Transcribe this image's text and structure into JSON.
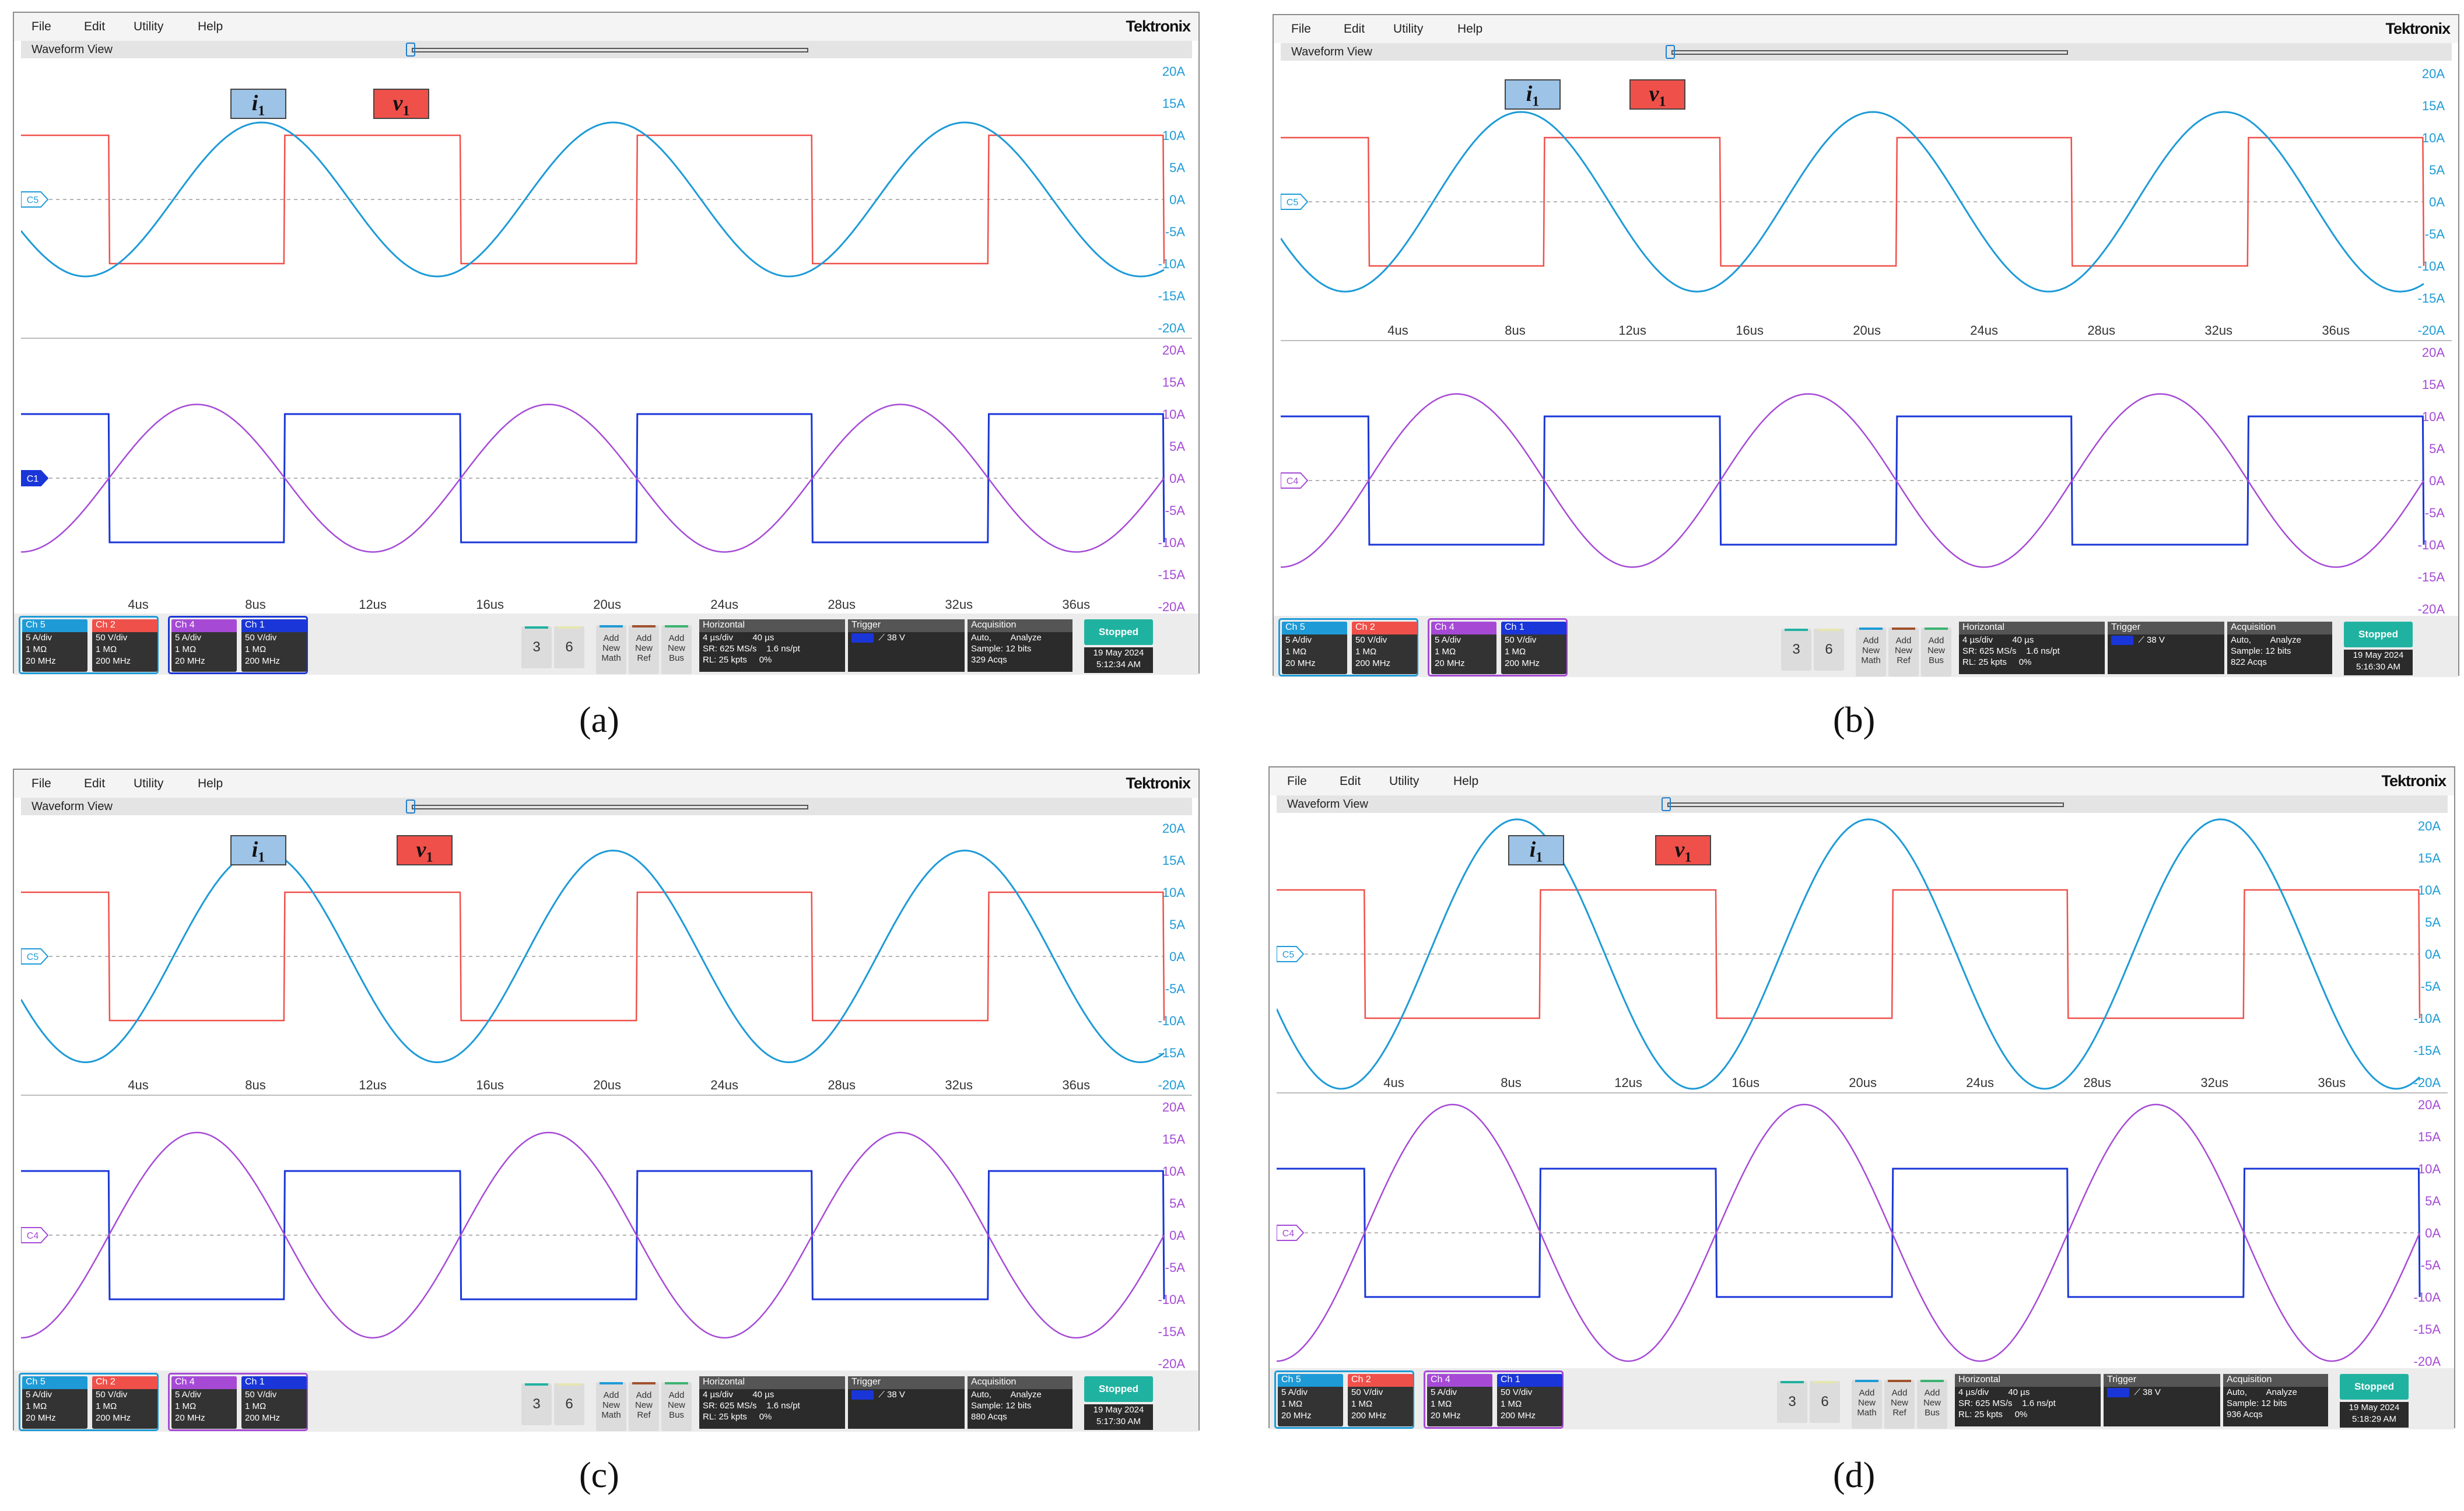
{
  "menu": [
    "File",
    "Edit",
    "Utility",
    "Help"
  ],
  "brand": "Tektronix",
  "view_title": "Waveform View",
  "annotations": {
    "current": "i",
    "voltage": "v",
    "subscript": "1"
  },
  "axis": {
    "right_labels": [
      "20A",
      "15A",
      "10A",
      "5A",
      "0A",
      "-5A",
      "-10A",
      "-15A",
      "-20A"
    ],
    "time_ticks": [
      "4us",
      "8us",
      "12us",
      "16us",
      "20us",
      "24us",
      "28us",
      "32us",
      "36us"
    ]
  },
  "colors": {
    "ch5": "#1e9bd7",
    "ch2": "#f0504a",
    "ch4": "#a64ad6",
    "ch1": "#1a36d8",
    "grid": "#b4b4b4",
    "stopped": "#20b2a0"
  },
  "panels": [
    {
      "caption": "(a)",
      "marker_top": "C5",
      "marker_bottom": "C1",
      "top_current_amp": 12,
      "bottom_current_amp": 11.5,
      "top_current_phase_us": 4.2,
      "bottom_current_phase_us": 2.0,
      "square_on_us": 0.5,
      "date": "19 May 2024",
      "time": "5:12:34 AM",
      "acqs": "329 Acqs",
      "group_highlight": [
        "ch5",
        "ch1"
      ]
    },
    {
      "caption": "(b)",
      "marker_top": "C5",
      "marker_bottom": "C4",
      "top_current_amp": 14,
      "bottom_current_amp": 13.5,
      "top_current_phase_us": 4.2,
      "bottom_current_phase_us": 2.0,
      "square_on_us": 0.5,
      "date": "19 May 2024",
      "time": "5:16:30 AM",
      "acqs": "822 Acqs",
      "group_highlight": [
        "ch5",
        "ch4"
      ]
    },
    {
      "caption": "(c)",
      "marker_top": "C5",
      "marker_bottom": "C4",
      "top_current_amp": 16.5,
      "bottom_current_amp": 16,
      "top_current_phase_us": 4.2,
      "bottom_current_phase_us": 2.0,
      "square_on_us": 0.5,
      "date": "19 May 2024",
      "time": "5:17:30 AM",
      "acqs": "880 Acqs",
      "group_highlight": [
        "ch5",
        "ch4"
      ]
    },
    {
      "caption": "(d)",
      "marker_top": "C5",
      "marker_bottom": "C4",
      "top_current_amp": 21,
      "bottom_current_amp": 20,
      "top_current_phase_us": 4.2,
      "bottom_current_phase_us": 2.0,
      "square_on_us": 0.5,
      "date": "19 May 2024",
      "time": "5:18:29 AM",
      "acqs": "936 Acqs",
      "group_highlight": [
        "ch5",
        "ch4"
      ]
    }
  ],
  "channels": [
    {
      "id": "ch5",
      "head": "Ch 5",
      "l1": "5 A/div",
      "l2": "1 MΩ",
      "l3": "20 MHz"
    },
    {
      "id": "ch2",
      "head": "Ch 2",
      "l1": "50 V/div",
      "l2": "1 MΩ",
      "l3": "200 MHz"
    },
    {
      "id": "ch4",
      "head": "Ch 4",
      "l1": "5 A/div",
      "l2": "1 MΩ",
      "l3": "20 MHz"
    },
    {
      "id": "ch1",
      "head": "Ch 1",
      "l1": "50 V/div",
      "l2": "1 MΩ",
      "l3": "200 MHz"
    }
  ],
  "buttons": {
    "num3": "3",
    "num6": "6",
    "add_math": [
      "Add",
      "New",
      "Math"
    ],
    "add_ref": [
      "Add",
      "New",
      "Ref"
    ],
    "add_bus": [
      "Add",
      "New",
      "Bus"
    ]
  },
  "horizontal": {
    "head": "Horizontal",
    "l1a": "4 µs/div",
    "l1b": "40 µs",
    "l2a": "SR: 625 MS/s",
    "l2b": "1.6 ns/pt",
    "l3a": "RL: 25 kpts",
    "l3b": "0%"
  },
  "trigger": {
    "head": "Trigger",
    "value": "38 V"
  },
  "acquisition": {
    "head": "Acquisition",
    "l1a": "Auto,",
    "l1b": "Analyze",
    "l2": "Sample: 12 bits"
  },
  "status": "Stopped",
  "chart_data": [
    {
      "type": "line",
      "title": "",
      "x_unit": "us",
      "y_unit": "A",
      "xlim": [
        0,
        39
      ],
      "ylim": [
        -20,
        20
      ],
      "x_ticks": [
        4,
        8,
        12,
        16,
        20,
        24,
        28,
        32,
        36
      ],
      "period_us": 12,
      "series": [
        {
          "name": "i",
          "kind": "sine",
          "amplitude": 12
        },
        {
          "name": "v",
          "kind": "square",
          "high": 10,
          "low": -10
        }
      ]
    },
    {
      "type": "line",
      "title": "",
      "x_unit": "us",
      "y_unit": "A",
      "xlim": [
        0,
        39
      ],
      "ylim": [
        -20,
        20
      ],
      "x_ticks": [
        4,
        8,
        12,
        16,
        20,
        24,
        28,
        32,
        36
      ],
      "period_us": 12,
      "series": [
        {
          "name": "i",
          "kind": "sine",
          "amplitude": 14
        },
        {
          "name": "v",
          "kind": "square",
          "high": 10,
          "low": -10
        }
      ]
    },
    {
      "type": "line",
      "title": "",
      "x_unit": "us",
      "y_unit": "A",
      "xlim": [
        0,
        39
      ],
      "ylim": [
        -20,
        20
      ],
      "x_ticks": [
        4,
        8,
        12,
        16,
        20,
        24,
        28,
        32,
        36
      ],
      "period_us": 12,
      "series": [
        {
          "name": "i",
          "kind": "sine",
          "amplitude": 16.5
        },
        {
          "name": "v",
          "kind": "square",
          "high": 10,
          "low": -10
        }
      ]
    },
    {
      "type": "line",
      "title": "",
      "x_unit": "us",
      "y_unit": "A",
      "xlim": [
        0,
        39
      ],
      "ylim": [
        -20,
        20
      ],
      "x_ticks": [
        4,
        8,
        12,
        16,
        20,
        24,
        28,
        32,
        36
      ],
      "period_us": 12,
      "series": [
        {
          "name": "i",
          "kind": "sine",
          "amplitude": 21
        },
        {
          "name": "v",
          "kind": "square",
          "high": 10,
          "low": -10
        }
      ]
    }
  ]
}
